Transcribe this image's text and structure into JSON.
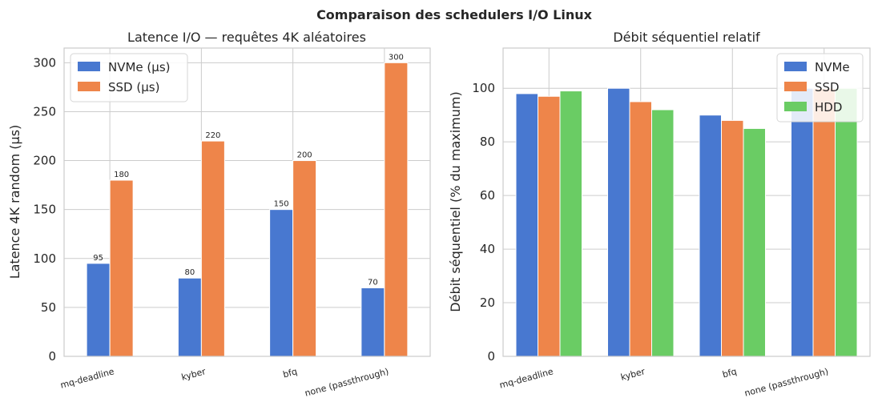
{
  "title": "Comparaison des schedulers I/O Linux",
  "chart_data": [
    {
      "type": "bar",
      "title": "Latence I/O — requêtes 4K aléatoires",
      "xlabel": "",
      "ylabel": "Latence 4K random (µs)",
      "ylim": [
        0,
        315
      ],
      "yticks": [
        0,
        50,
        100,
        150,
        200,
        250,
        300
      ],
      "grid": true,
      "legend_position": "top-left",
      "show_value_labels": true,
      "categories": [
        "mq-deadline",
        "kyber",
        "bfq",
        "none (passthrough)"
      ],
      "series": [
        {
          "name": "NVMe (µs)",
          "color": "#4878d0",
          "values": [
            95,
            80,
            150,
            70
          ]
        },
        {
          "name": "SSD (µs)",
          "color": "#ee854a",
          "values": [
            180,
            220,
            200,
            300
          ]
        }
      ]
    },
    {
      "type": "bar",
      "title": "Débit séquentiel relatif",
      "xlabel": "",
      "ylabel": "Débit séquentiel (% du maximum)",
      "ylim": [
        0,
        115
      ],
      "yticks": [
        0,
        20,
        40,
        60,
        80,
        100
      ],
      "grid": true,
      "legend_position": "top-right",
      "show_value_labels": false,
      "categories": [
        "mq-deadline",
        "kyber",
        "bfq",
        "none (passthrough)"
      ],
      "series": [
        {
          "name": "NVMe",
          "color": "#4878d0",
          "values": [
            98,
            100,
            90,
            100
          ]
        },
        {
          "name": "SSD",
          "color": "#ee854a",
          "values": [
            97,
            95,
            88,
            100
          ]
        },
        {
          "name": "HDD",
          "color": "#6acc64",
          "values": [
            99,
            92,
            85,
            100
          ]
        }
      ]
    }
  ]
}
